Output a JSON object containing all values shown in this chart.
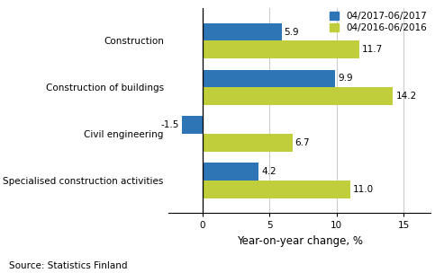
{
  "categories": [
    "Construction",
    "Construction of buildings",
    "Civil engineering",
    "Specialised construction activities"
  ],
  "series": [
    {
      "label": "04/2017-06/2017",
      "color": "#2E75B6",
      "values": [
        5.9,
        9.9,
        -1.5,
        4.2
      ]
    },
    {
      "label": "04/2016-06/2016",
      "color": "#BFCE3A",
      "values": [
        11.7,
        14.2,
        6.7,
        11.0
      ]
    }
  ],
  "xlim": [
    -2.5,
    17
  ],
  "xticks": [
    0,
    5,
    10,
    15
  ],
  "xlabel": "Year-on-year change, %",
  "source": "Source: Statistics Finland",
  "background_color": "#FFFFFF",
  "grid_color": "#CCCCCC",
  "bar_height": 0.38,
  "label_fontsize": 7.5,
  "tick_fontsize": 7.5,
  "xlabel_fontsize": 8.5,
  "source_fontsize": 7.5,
  "legend_fontsize": 7.5
}
